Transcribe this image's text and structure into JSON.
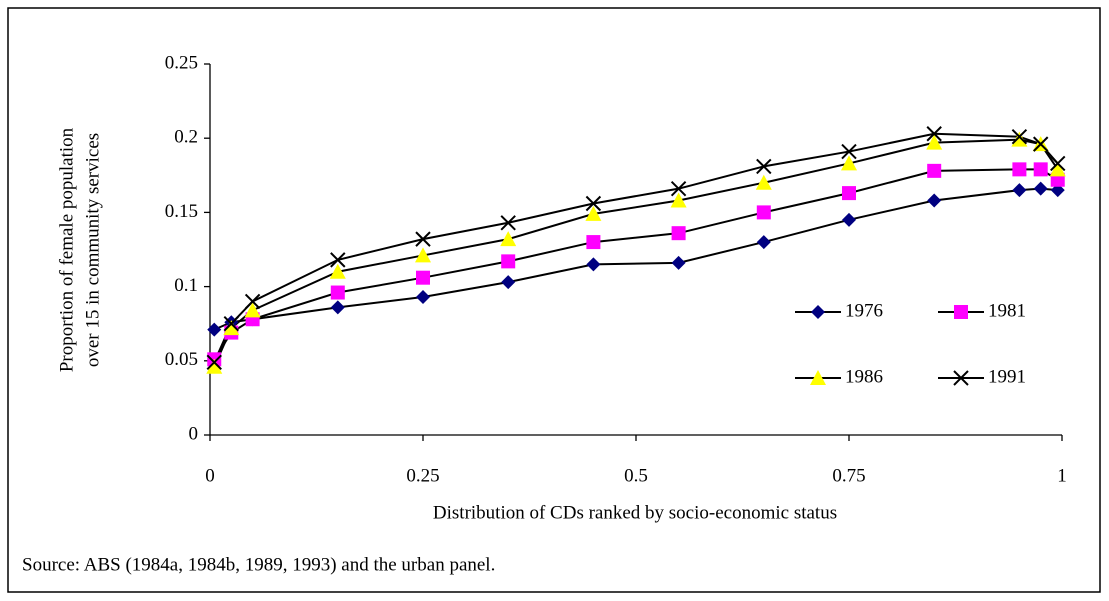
{
  "chart_data": {
    "type": "line",
    "xlabel": "Distribution of CDs ranked by socio-economic status",
    "ylabel": [
      "Proportion of female population",
      "over 15 in community services"
    ],
    "source": "Source:  ABS (1984a, 1984b, 1989, 1993) and the urban panel.",
    "x": [
      0.005,
      0.025,
      0.05,
      0.15,
      0.25,
      0.35,
      0.45,
      0.55,
      0.65,
      0.75,
      0.85,
      0.95,
      0.975,
      0.995
    ],
    "xlim": [
      0,
      1
    ],
    "xticks": [
      0,
      0.25,
      0.5,
      0.75,
      1
    ],
    "ylim": [
      0,
      0.25
    ],
    "yticks": [
      0,
      0.05,
      0.1,
      0.15,
      0.2,
      0.25
    ],
    "line_color": "#000000",
    "series": [
      {
        "name": "1976",
        "color": "#000080",
        "marker": "diamond",
        "values": [
          0.071,
          0.076,
          0.078,
          0.086,
          0.093,
          0.103,
          0.115,
          0.116,
          0.13,
          0.145,
          0.158,
          0.165,
          0.166,
          0.165
        ]
      },
      {
        "name": "1981",
        "color": "#ff00ff",
        "marker": "square",
        "values": [
          0.051,
          0.069,
          0.078,
          0.096,
          0.106,
          0.117,
          0.13,
          0.136,
          0.15,
          0.163,
          0.178,
          0.179,
          0.179,
          0.172
        ]
      },
      {
        "name": "1986",
        "color": "#ffff00",
        "marker": "triangle",
        "values": [
          0.046,
          0.072,
          0.084,
          0.11,
          0.121,
          0.132,
          0.149,
          0.158,
          0.17,
          0.183,
          0.197,
          0.199,
          0.196,
          0.179
        ]
      },
      {
        "name": "1991",
        "color": "#000000",
        "marker": "x",
        "values": [
          0.049,
          0.075,
          0.09,
          0.118,
          0.132,
          0.143,
          0.156,
          0.166,
          0.181,
          0.191,
          0.203,
          0.201,
          0.196,
          0.183
        ]
      }
    ]
  }
}
